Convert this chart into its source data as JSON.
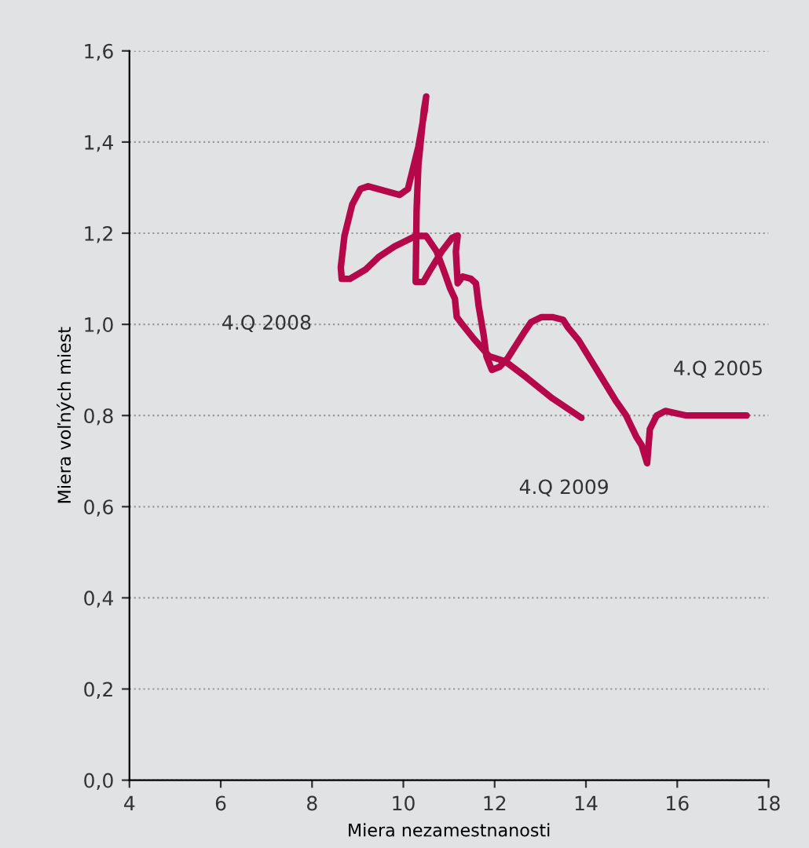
{
  "chart_data": {
    "type": "line",
    "xlabel": "Miera nezamestnanosti",
    "ylabel": "Miera voľných miest",
    "xlim": [
      4,
      18
    ],
    "xticks": [
      4,
      6,
      8,
      10,
      12,
      14,
      16,
      18
    ],
    "ylim": [
      0,
      1.6
    ],
    "yticks": [
      {
        "value": 0,
        "label": "0,0"
      },
      {
        "value": 0.2,
        "label": "0,2"
      },
      {
        "value": 0.4,
        "label": "0,4"
      },
      {
        "value": 0.6,
        "label": "0,6"
      },
      {
        "value": 0.8,
        "label": "0,8"
      },
      {
        "value": 1.0,
        "label": "1,0"
      },
      {
        "value": 1.2,
        "label": "1,2"
      },
      {
        "value": 1.4,
        "label": "1,4"
      },
      {
        "value": 1.6,
        "label": "1,6"
      }
    ],
    "grid": "y",
    "marker": "none",
    "line_style": "solid",
    "legend": false,
    "series": [
      {
        "color": "#b5084a",
        "x": [
          17.52,
          16.2,
          15.74,
          15.55,
          15.4,
          15.34,
          15.22,
          15.1,
          14.88,
          14.65,
          13.84,
          13.6,
          13.5,
          13.26,
          13.03,
          12.8,
          12.63,
          12.28,
          12.11,
          11.94,
          11.82,
          11.76,
          11.65,
          11.59,
          11.48,
          11.3,
          11.19,
          11.15,
          11.19,
          11.07,
          10.84,
          10.56,
          10.44,
          10.27,
          10.29,
          10.33,
          10.45,
          10.5,
          10.47,
          10.33,
          10.1,
          9.92,
          9.23,
          9.06,
          8.88,
          8.71,
          8.63,
          8.65,
          8.83,
          9.17,
          9.46,
          9.81,
          10.27,
          10.5,
          10.73,
          10.9,
          11.02,
          11.13,
          11.17,
          11.3,
          11.53,
          11.88,
          12.23,
          12.69,
          13.26,
          13.9
        ],
        "values": [
          0.8,
          0.8,
          0.81,
          0.8,
          0.77,
          0.695,
          0.735,
          0.754,
          0.8,
          0.833,
          0.965,
          0.994,
          1.01,
          1.016,
          1.016,
          1.005,
          0.98,
          0.925,
          0.907,
          0.9,
          0.93,
          0.976,
          1.04,
          1.09,
          1.1,
          1.105,
          1.09,
          1.16,
          1.195,
          1.19,
          1.16,
          1.114,
          1.093,
          1.093,
          1.25,
          1.35,
          1.47,
          1.5,
          1.47,
          1.39,
          1.297,
          1.284,
          1.303,
          1.297,
          1.263,
          1.194,
          1.125,
          1.1,
          1.1,
          1.12,
          1.148,
          1.171,
          1.194,
          1.194,
          1.16,
          1.114,
          1.08,
          1.056,
          1.016,
          0.999,
          0.97,
          0.93,
          0.919,
          0.884,
          0.838,
          0.795
        ]
      }
    ],
    "annotations": [
      {
        "text": "4.Q 2005",
        "x": 17.52,
        "y": 0.8
      },
      {
        "text": "4.Q 2008",
        "x": 8.63,
        "y": 1.125
      },
      "4.Q 2009"
    ]
  }
}
